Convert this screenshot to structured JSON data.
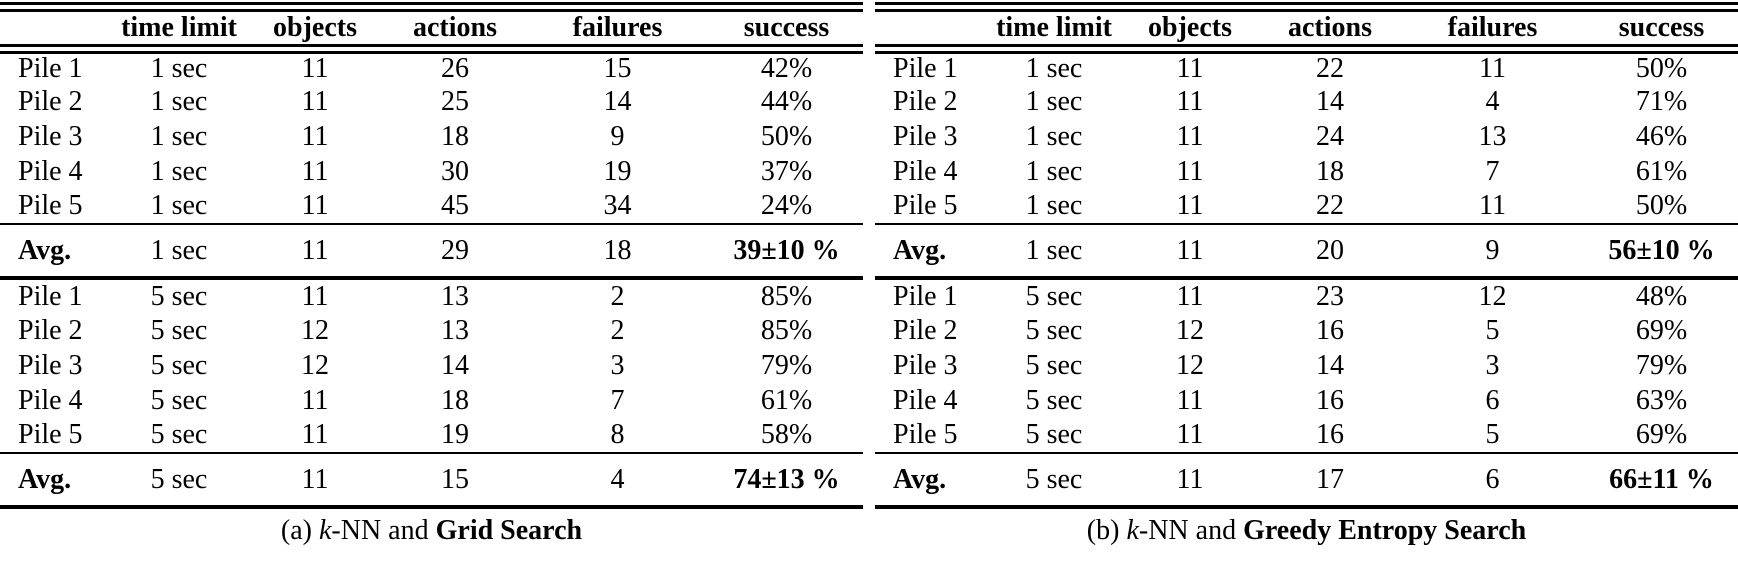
{
  "page": {
    "background": "#ffffff",
    "text_color": "#000000"
  },
  "tables": [
    {
      "id": "a",
      "headers": [
        "",
        "time limit",
        "objects",
        "actions",
        "failures",
        "success"
      ],
      "sections": [
        {
          "rows": [
            [
              "Pile 1",
              "1 sec",
              "11",
              "26",
              "15",
              "42%"
            ],
            [
              "Pile 2",
              "1 sec",
              "11",
              "25",
              "14",
              "44%"
            ],
            [
              "Pile 3",
              "1 sec",
              "11",
              "18",
              "9",
              "50%"
            ],
            [
              "Pile 4",
              "1 sec",
              "11",
              "30",
              "19",
              "37%"
            ],
            [
              "Pile 5",
              "1 sec",
              "11",
              "45",
              "34",
              "24%"
            ]
          ],
          "avg": [
            "Avg.",
            "1 sec",
            "11",
            "29",
            "18",
            "39±10 %"
          ]
        },
        {
          "rows": [
            [
              "Pile 1",
              "5 sec",
              "11",
              "13",
              "2",
              "85%"
            ],
            [
              "Pile 2",
              "5 sec",
              "12",
              "13",
              "2",
              "85%"
            ],
            [
              "Pile 3",
              "5 sec",
              "12",
              "14",
              "3",
              "79%"
            ],
            [
              "Pile 4",
              "5 sec",
              "11",
              "18",
              "7",
              "61%"
            ],
            [
              "Pile 5",
              "5 sec",
              "11",
              "19",
              "8",
              "58%"
            ]
          ],
          "avg": [
            "Avg.",
            "5 sec",
            "11",
            "15",
            "4",
            "74±13 %"
          ]
        }
      ],
      "caption": {
        "prefix": "(a)",
        "k": "k",
        "mid": "-NN and",
        "bold": "Grid Search"
      }
    },
    {
      "id": "b",
      "headers": [
        "",
        "time limit",
        "objects",
        "actions",
        "failures",
        "success"
      ],
      "sections": [
        {
          "rows": [
            [
              "Pile 1",
              "1 sec",
              "11",
              "22",
              "11",
              "50%"
            ],
            [
              "Pile 2",
              "1 sec",
              "11",
              "14",
              "4",
              "71%"
            ],
            [
              "Pile 3",
              "1 sec",
              "11",
              "24",
              "13",
              "46%"
            ],
            [
              "Pile 4",
              "1 sec",
              "11",
              "18",
              "7",
              "61%"
            ],
            [
              "Pile 5",
              "1 sec",
              "11",
              "22",
              "11",
              "50%"
            ]
          ],
          "avg": [
            "Avg.",
            "1 sec",
            "11",
            "20",
            "9",
            "56±10 %"
          ]
        },
        {
          "rows": [
            [
              "Pile 1",
              "5 sec",
              "11",
              "23",
              "12",
              "48%"
            ],
            [
              "Pile 2",
              "5 sec",
              "12",
              "16",
              "5",
              "69%"
            ],
            [
              "Pile 3",
              "5 sec",
              "12",
              "14",
              "3",
              "79%"
            ],
            [
              "Pile 4",
              "5 sec",
              "11",
              "16",
              "6",
              "63%"
            ],
            [
              "Pile 5",
              "5 sec",
              "11",
              "16",
              "5",
              "69%"
            ]
          ],
          "avg": [
            "Avg.",
            "5 sec",
            "11",
            "17",
            "6",
            "66±11 %"
          ]
        }
      ],
      "caption": {
        "prefix": "(b)",
        "k": "k",
        "mid": "-NN and",
        "bold": "Greedy Entropy Search"
      }
    }
  ]
}
